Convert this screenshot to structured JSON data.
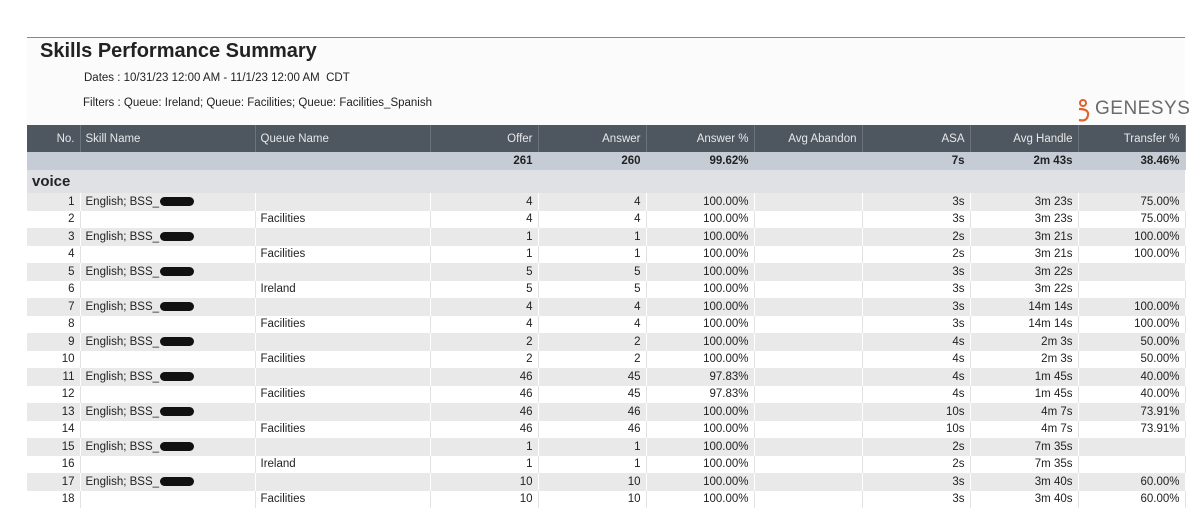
{
  "header": {
    "title": "Skills Performance Summary",
    "dates": "Dates : 10/31/23 12:00 AM - 11/1/23 12:00 AM  CDT",
    "filters": "Filters : Queue: Ireland; Queue: Facilities; Queue: Facilities_Spanish",
    "logo": "GENESYS"
  },
  "table": {
    "columns": [
      "No.",
      "Skill Name",
      "Queue Name",
      "Offer",
      "Answer",
      "Answer %",
      "Avg Abandon",
      "ASA",
      "Avg Handle",
      "Transfer %"
    ],
    "totals": [
      null,
      null,
      null,
      261,
      260,
      "99.62%",
      null,
      "7s",
      "2m 43s",
      "38.46%"
    ],
    "group": "voice",
    "rows": [
      [
        1,
        "English; BSS_",
        null,
        4,
        4,
        "100.00%",
        null,
        "3s",
        "3m 23s",
        "75.00%"
      ],
      [
        2,
        null,
        "Facilities",
        4,
        4,
        "100.00%",
        null,
        "3s",
        "3m 23s",
        "75.00%"
      ],
      [
        3,
        "English; BSS_",
        null,
        1,
        1,
        "100.00%",
        null,
        "2s",
        "3m 21s",
        "100.00%"
      ],
      [
        4,
        null,
        "Facilities",
        1,
        1,
        "100.00%",
        null,
        "2s",
        "3m 21s",
        "100.00%"
      ],
      [
        5,
        "English; BSS_",
        null,
        5,
        5,
        "100.00%",
        null,
        "3s",
        "3m 22s",
        null
      ],
      [
        6,
        null,
        "Ireland",
        5,
        5,
        "100.00%",
        null,
        "3s",
        "3m 22s",
        null
      ],
      [
        7,
        "English; BSS_",
        null,
        4,
        4,
        "100.00%",
        null,
        "3s",
        "14m 14s",
        "100.00%"
      ],
      [
        8,
        null,
        "Facilities",
        4,
        4,
        "100.00%",
        null,
        "3s",
        "14m 14s",
        "100.00%"
      ],
      [
        9,
        "English; BSS_",
        null,
        2,
        2,
        "100.00%",
        null,
        "4s",
        "2m 3s",
        "50.00%"
      ],
      [
        10,
        null,
        "Facilities",
        2,
        2,
        "100.00%",
        null,
        "4s",
        "2m 3s",
        "50.00%"
      ],
      [
        11,
        "English; BSS_",
        null,
        46,
        45,
        "97.83%",
        null,
        "4s",
        "1m 45s",
        "40.00%"
      ],
      [
        12,
        null,
        "Facilities",
        46,
        45,
        "97.83%",
        null,
        "4s",
        "1m 45s",
        "40.00%"
      ],
      [
        13,
        "English; BSS_",
        null,
        46,
        46,
        "100.00%",
        null,
        "10s",
        "4m 7s",
        "73.91%"
      ],
      [
        14,
        null,
        "Facilities",
        46,
        46,
        "100.00%",
        null,
        "10s",
        "4m 7s",
        "73.91%"
      ],
      [
        15,
        "English; BSS_",
        null,
        1,
        1,
        "100.00%",
        null,
        "2s",
        "7m 35s",
        null
      ],
      [
        16,
        null,
        "Ireland",
        1,
        1,
        "100.00%",
        null,
        "2s",
        "7m 35s",
        null
      ],
      [
        17,
        "English; BSS_",
        null,
        10,
        10,
        "100.00%",
        null,
        "3s",
        "3m 40s",
        "60.00%"
      ],
      [
        18,
        null,
        "Facilities",
        10,
        10,
        "100.00%",
        null,
        "3s",
        "3m 40s",
        "60.00%"
      ]
    ]
  }
}
